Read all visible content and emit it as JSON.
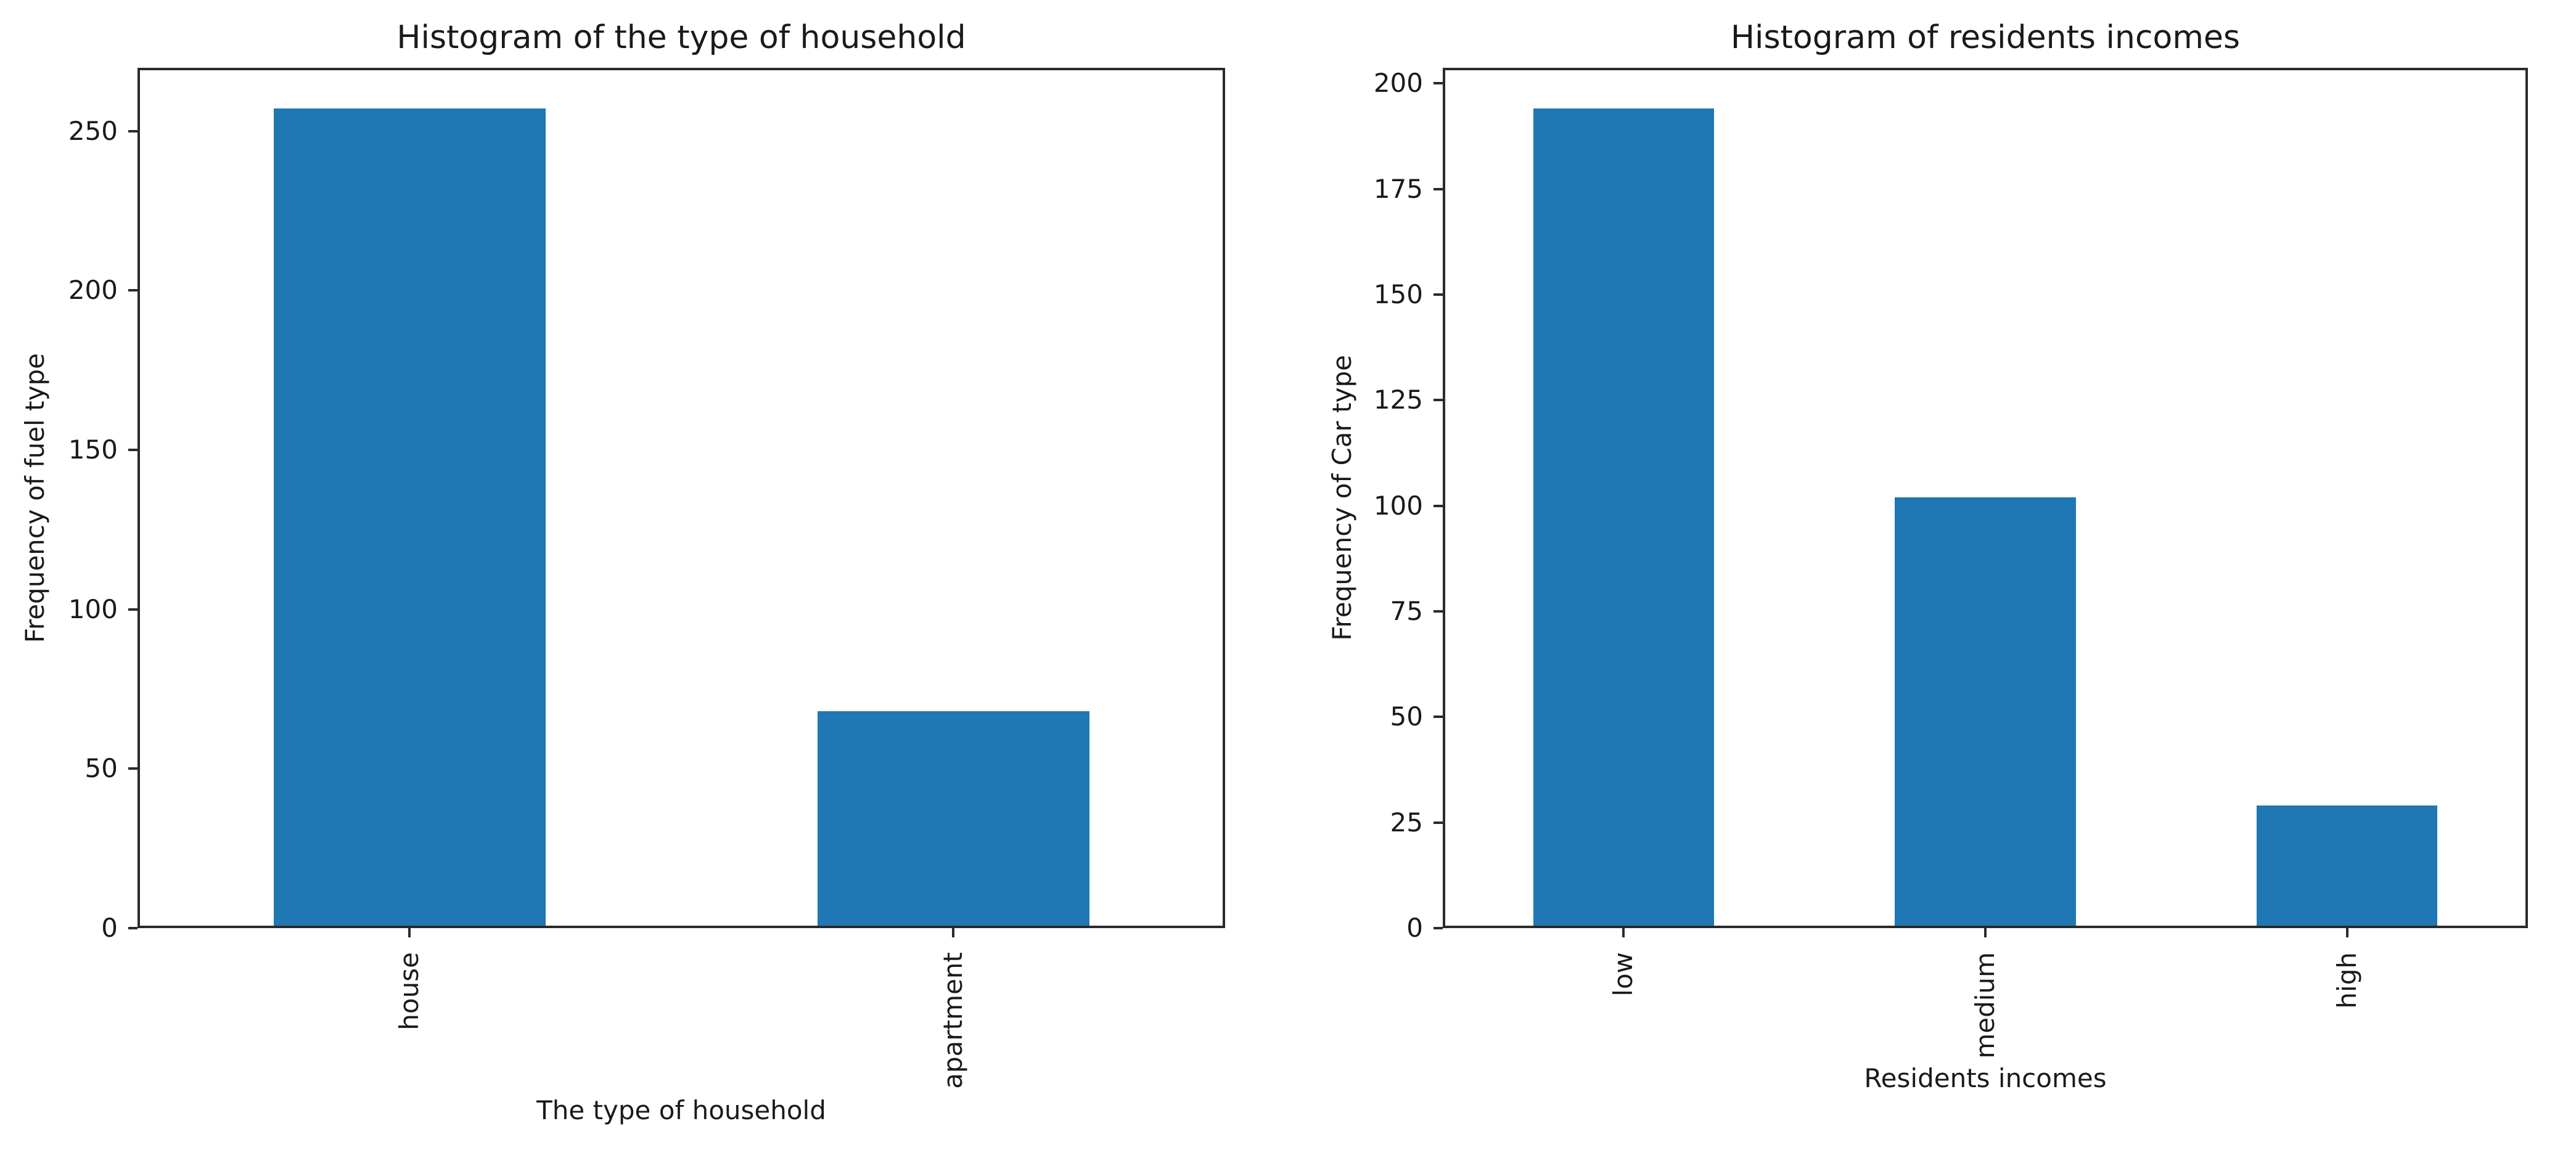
{
  "figure": {
    "background_color": "#ffffff",
    "text_color": "#1a1a1a",
    "spine_color": "#2b2b2b"
  },
  "chart_data": [
    {
      "type": "bar",
      "title": "Histogram of the type of household",
      "xlabel": "The type of household",
      "ylabel": "Frequency of fuel type",
      "categories": [
        "house",
        "apartment"
      ],
      "values": [
        257,
        68
      ],
      "yticks": [
        0,
        50,
        100,
        150,
        200,
        250
      ],
      "ylim": [
        0,
        269.85
      ],
      "bar_color": "#1f77b4",
      "bar_width_fraction": 0.5,
      "xtick_rotation_deg": 90,
      "grid": false,
      "legend": null
    },
    {
      "type": "bar",
      "title": "Histogram of residents incomes",
      "xlabel": "Residents incomes",
      "ylabel": "Frequency of Car type",
      "categories": [
        "low",
        "medium",
        "high"
      ],
      "values": [
        194,
        102,
        29
      ],
      "yticks": [
        0,
        25,
        50,
        75,
        100,
        125,
        150,
        175,
        200
      ],
      "ylim": [
        0,
        203.7
      ],
      "bar_color": "#1f77b4",
      "bar_width_fraction": 0.5,
      "xtick_rotation_deg": 90,
      "grid": false,
      "legend": null
    }
  ]
}
